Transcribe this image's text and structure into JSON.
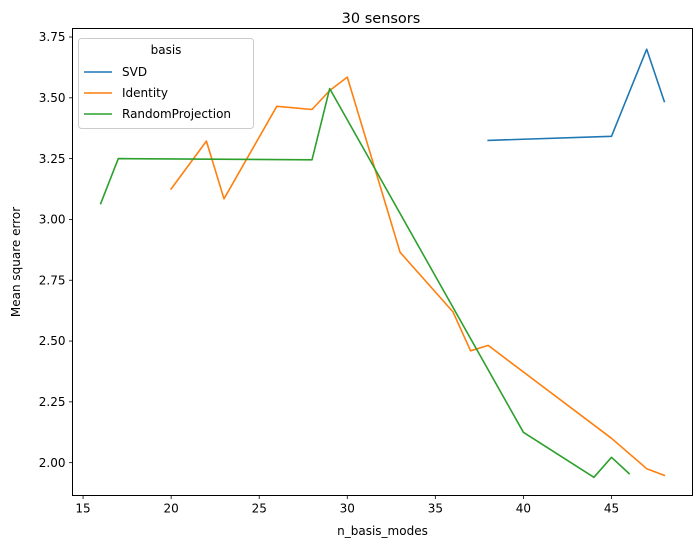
{
  "chart_data": {
    "type": "line",
    "title": "30 sensors",
    "xlabel": "n_basis_modes",
    "ylabel": "Mean square error",
    "xlim": [
      14.4,
      49.6
    ],
    "ylim": [
      1.865,
      3.785
    ],
    "xticks": [
      15,
      20,
      25,
      30,
      35,
      40,
      45
    ],
    "yticks": [
      2.0,
      2.25,
      2.5,
      2.75,
      3.0,
      3.25,
      3.5,
      3.75
    ],
    "grid": false,
    "legend": {
      "title": "basis",
      "position": "top-left"
    },
    "series": [
      {
        "name": "SVD",
        "color": "#1f77b4",
        "points": [
          [
            38,
            3.325
          ],
          [
            45,
            3.342
          ],
          [
            47,
            3.7
          ],
          [
            48,
            3.485
          ]
        ]
      },
      {
        "name": "Identity",
        "color": "#ff7f0e",
        "points": [
          [
            20,
            3.125
          ],
          [
            22,
            3.322
          ],
          [
            23,
            3.085
          ],
          [
            26,
            3.465
          ],
          [
            28,
            3.452
          ],
          [
            29,
            3.53
          ],
          [
            30,
            3.585
          ],
          [
            33,
            2.865
          ],
          [
            36,
            2.62
          ],
          [
            37,
            2.46
          ],
          [
            38,
            2.482
          ],
          [
            45,
            2.1
          ],
          [
            47,
            1.975
          ],
          [
            48,
            1.948
          ]
        ]
      },
      {
        "name": "RandomProjection",
        "color": "#2ca02c",
        "points": [
          [
            16,
            3.065
          ],
          [
            17,
            3.25
          ],
          [
            28,
            3.245
          ],
          [
            29,
            3.538
          ],
          [
            40,
            2.125
          ],
          [
            44,
            1.94
          ],
          [
            45,
            2.022
          ],
          [
            46,
            1.955
          ]
        ]
      }
    ]
  }
}
